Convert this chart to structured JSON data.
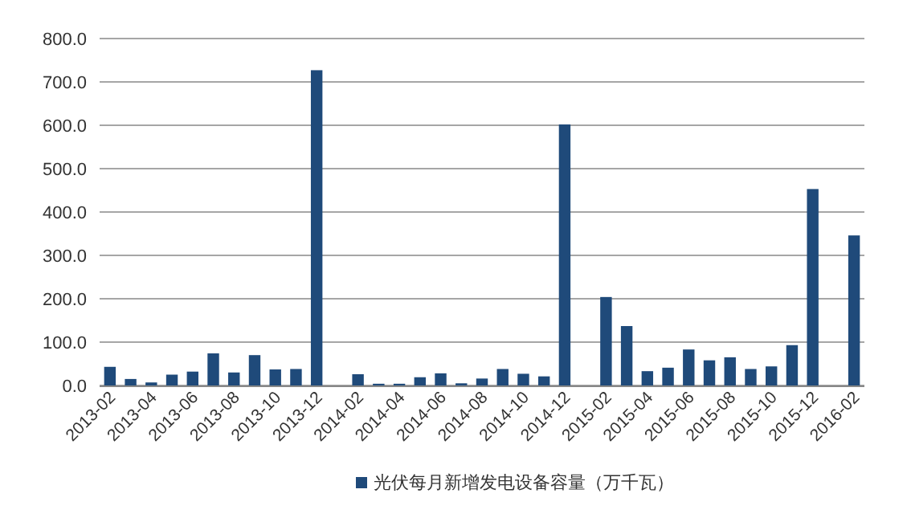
{
  "chart_data": {
    "type": "bar",
    "categories": [
      "2013-02",
      null,
      "2013-04",
      null,
      "2013-06",
      null,
      "2013-08",
      null,
      "2013-10",
      null,
      "2013-12",
      null,
      "2014-02",
      null,
      "2014-04",
      null,
      "2014-06",
      null,
      "2014-08",
      null,
      "2014-10",
      null,
      "2014-12",
      null,
      "2015-02",
      null,
      "2015-04",
      null,
      "2015-06",
      null,
      "2015-08",
      null,
      "2015-10",
      null,
      "2015-12",
      null,
      "2016-02"
    ],
    "series": [
      {
        "name": "光伏每月新增发电设备容量（万千瓦）",
        "color": "#1f4a7a",
        "values": [
          43,
          15,
          7,
          25,
          32,
          74,
          30,
          70,
          37,
          38,
          727,
          null,
          26,
          4,
          4,
          19,
          28,
          5,
          16,
          38,
          27,
          21,
          602,
          null,
          204,
          137,
          33,
          41,
          83,
          58,
          65,
          38,
          44,
          93,
          453,
          null,
          346
        ]
      }
    ],
    "ylim": [
      0,
      800
    ],
    "yticks": [
      {
        "value": 0,
        "label": "0.0"
      },
      {
        "value": 100,
        "label": "100.0"
      },
      {
        "value": 200,
        "label": "200.0"
      },
      {
        "value": 300,
        "label": "300.0"
      },
      {
        "value": 400,
        "label": "400.0"
      },
      {
        "value": 500,
        "label": "500.0"
      },
      {
        "value": 600,
        "label": "600.0"
      },
      {
        "value": 700,
        "label": "700.0"
      },
      {
        "value": 800,
        "label": "800.0"
      }
    ],
    "grid": "y",
    "legend": "bottom"
  }
}
